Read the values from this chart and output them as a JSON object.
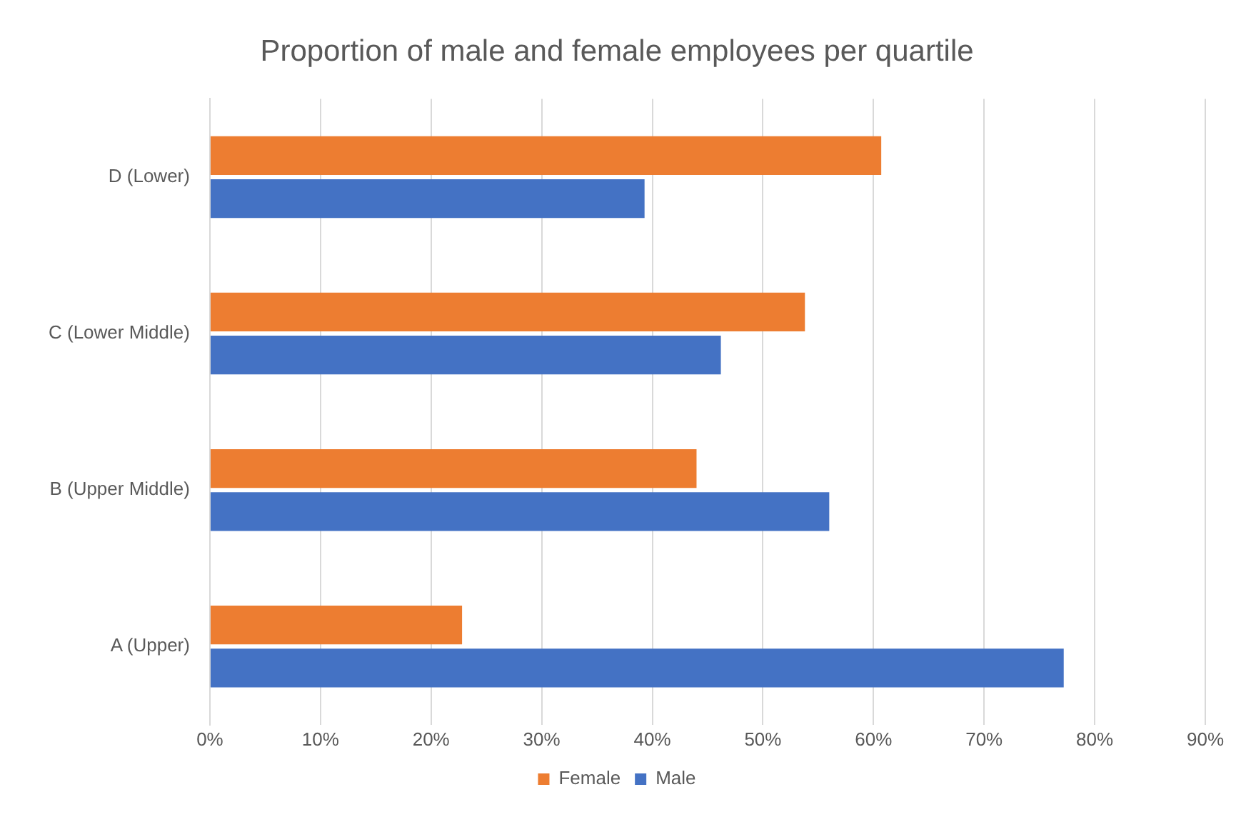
{
  "chart_data": {
    "type": "bar",
    "orientation": "horizontal",
    "title": "Proportion of male and female employees per quartile",
    "categories": [
      "D (Lower)",
      "C (Lower Middle)",
      "B (Upper Middle)",
      "A (Upper)"
    ],
    "series": [
      {
        "name": "Female",
        "color": "#ed7d31",
        "values": [
          60.7,
          53.8,
          44,
          22.8
        ]
      },
      {
        "name": "Male",
        "color": "#4472c4",
        "values": [
          39.3,
          46.2,
          56,
          77.2
        ]
      }
    ],
    "xlim": [
      0,
      90
    ],
    "xticks": [
      {
        "value": 0,
        "label": "0%"
      },
      {
        "value": 10,
        "label": "10%"
      },
      {
        "value": 20,
        "label": "20%"
      },
      {
        "value": 30,
        "label": "30%"
      },
      {
        "value": 40,
        "label": "40%"
      },
      {
        "value": 50,
        "label": "50%"
      },
      {
        "value": 60,
        "label": "60%"
      },
      {
        "value": 70,
        "label": "70%"
      },
      {
        "value": 80,
        "label": "80%"
      },
      {
        "value": 90,
        "label": "90%"
      }
    ],
    "grid": "x",
    "legend": "bottom"
  }
}
